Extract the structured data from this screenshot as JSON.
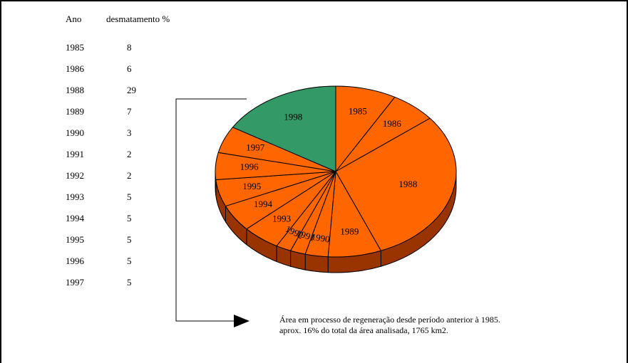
{
  "table": {
    "header_year": "Ano",
    "header_pct": "desmatamento %",
    "rows": [
      {
        "year": "1985",
        "value": "8"
      },
      {
        "year": "1986",
        "value": "6"
      },
      {
        "year": "1988",
        "value": "29"
      },
      {
        "year": "1989",
        "value": "7"
      },
      {
        "year": "1990",
        "value": "3"
      },
      {
        "year": "1991",
        "value": "2"
      },
      {
        "year": "1992",
        "value": "2"
      },
      {
        "year": "1993",
        "value": "5"
      },
      {
        "year": "1994",
        "value": "5"
      },
      {
        "year": "1995",
        "value": "5"
      },
      {
        "year": "1996",
        "value": "5"
      },
      {
        "year": "1997",
        "value": "5"
      }
    ]
  },
  "chart_data": {
    "type": "pie",
    "style": "3d",
    "categories": [
      "1985",
      "1986",
      "1988",
      "1989",
      "1990",
      "1991",
      "1992",
      "1993",
      "1994",
      "1995",
      "1996",
      "1997",
      "1998"
    ],
    "values": [
      8,
      6,
      29,
      7,
      3,
      2,
      2,
      5,
      5,
      5,
      5,
      5,
      16
    ],
    "colors": {
      "default": "#ff6600",
      "highlight": "#339966",
      "side": "#993300",
      "highlight_side": "#1f5c3d",
      "stroke": "#000000"
    },
    "highlight_category": "1998"
  },
  "annotation": {
    "line1": "Área em processo de regeneração desde período anterior à 1985.",
    "line2": "aprox. 16% do total da área analisada,  1765 km2."
  }
}
